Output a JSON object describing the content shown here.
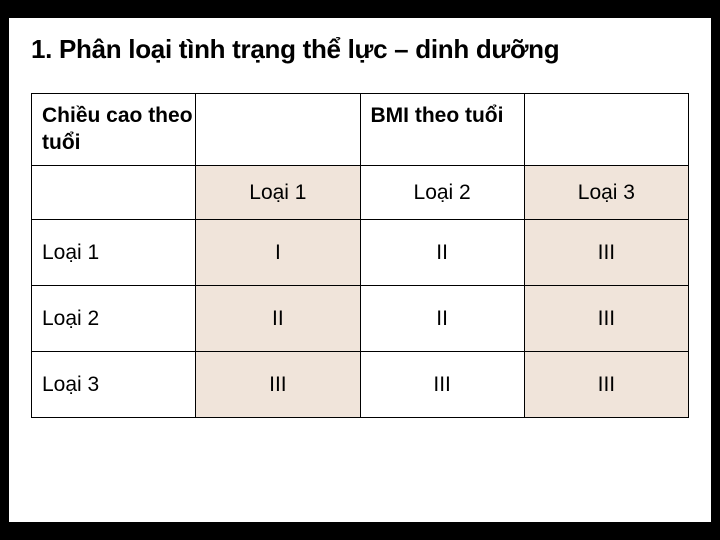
{
  "slide": {
    "title": "1. Phân loại tình trạng thể lực – dinh dưỡng",
    "background_color": "#ffffff",
    "outer_background": "#000000",
    "title_fontsize": 26,
    "title_color": "#000000"
  },
  "table": {
    "type": "table",
    "border_color": "#000000",
    "shaded_bg": "#f0e4da",
    "cell_fontsize": 21,
    "header": {
      "row_label": "Chiều cao theo tuổi",
      "bmi_label": "BMI theo tuổi"
    },
    "column_headers": [
      "Loại 1",
      "Loại 2",
      "Loại 3"
    ],
    "row_labels": [
      "Loại 1",
      "Loại 2",
      "Loại 3"
    ],
    "rows": [
      [
        "I",
        "II",
        "III"
      ],
      [
        "II",
        "II",
        "III"
      ],
      [
        "III",
        "III",
        "III"
      ]
    ]
  }
}
